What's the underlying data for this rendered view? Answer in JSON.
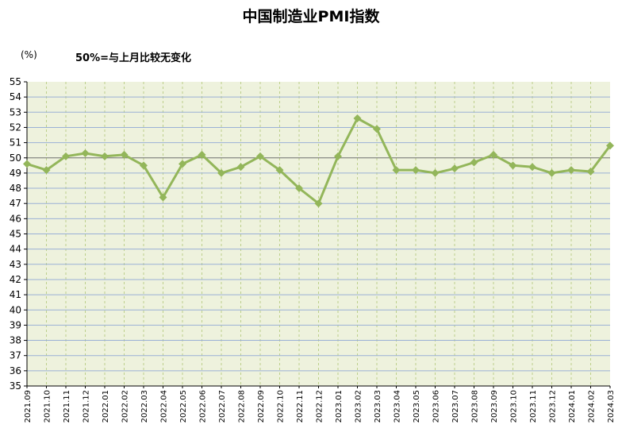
{
  "chart_data": {
    "type": "line",
    "title": "中国制造业PMI指数",
    "unit_label": "(%)",
    "annotation": "50%=与上月比较无变化",
    "ylim": [
      35,
      55
    ],
    "y_ticks": [
      35,
      36,
      37,
      38,
      39,
      40,
      41,
      42,
      43,
      44,
      45,
      46,
      47,
      48,
      49,
      50,
      51,
      52,
      53,
      54,
      55
    ],
    "grid": true,
    "reference_line": 50,
    "colors": {
      "plot_bg": "#eef2dd",
      "line": "#93b65a",
      "hgrid": "#9ab0d6",
      "vgrid": "#bccf8a",
      "ref": "#6f6f6f"
    },
    "categories": [
      "2021.09",
      "2021.10",
      "2021.11",
      "2021.12",
      "2022.01",
      "2022.02",
      "2022.03",
      "2022.04",
      "2022.05",
      "2022.06",
      "2022.07",
      "2022.08",
      "2022.09",
      "2022.10",
      "2022.11",
      "2022.12",
      "2023.01",
      "2023.02",
      "2023.03",
      "2023.04",
      "2023.05",
      "2023.06",
      "2023.07",
      "2023.08",
      "2023.09",
      "2023.10",
      "2023.11",
      "2023.12",
      "2024.01",
      "2024.02",
      "2024.03"
    ],
    "values": [
      49.6,
      49.2,
      50.1,
      50.3,
      50.1,
      50.2,
      49.5,
      47.4,
      49.6,
      50.2,
      49.0,
      49.4,
      50.1,
      49.2,
      48.0,
      47.0,
      50.1,
      52.6,
      51.9,
      49.2,
      49.2,
      49.0,
      49.3,
      49.7,
      50.2,
      49.5,
      49.4,
      49.0,
      49.2,
      49.1,
      50.8
    ],
    "marker": "diamond"
  }
}
